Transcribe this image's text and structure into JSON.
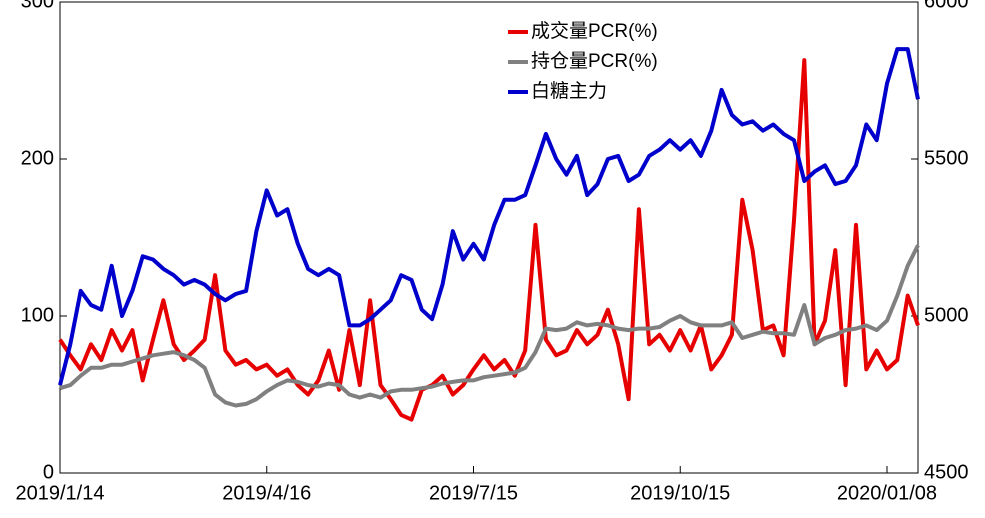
{
  "chart_data": {
    "type": "line",
    "categories": [
      "2019/1/14",
      null,
      null,
      null,
      null,
      null,
      null,
      null,
      null,
      null,
      null,
      null,
      null,
      null,
      null,
      null,
      null,
      null,
      null,
      null,
      "2019/4/16",
      null,
      null,
      null,
      null,
      null,
      null,
      null,
      null,
      null,
      null,
      null,
      null,
      null,
      null,
      null,
      null,
      null,
      null,
      null,
      "2019/7/15",
      null,
      null,
      null,
      null,
      null,
      null,
      null,
      null,
      null,
      null,
      null,
      null,
      null,
      null,
      null,
      null,
      null,
      null,
      null,
      "2019/10/15",
      null,
      null,
      null,
      null,
      null,
      null,
      null,
      null,
      null,
      null,
      null,
      null,
      null,
      null,
      null,
      null,
      null,
      null,
      null,
      "2020/01/08",
      null,
      null,
      null
    ],
    "series": [
      {
        "name": "成交量PCR(%)",
        "color": "#e60000",
        "values": [
          85,
          75,
          66,
          82,
          72,
          91,
          78,
          91,
          59,
          85,
          110,
          82,
          72,
          78,
          85,
          126,
          78,
          69,
          72,
          66,
          69,
          62,
          66,
          56,
          50,
          59,
          78,
          53,
          91,
          56,
          110,
          56,
          47,
          37,
          34,
          53,
          56,
          62,
          50,
          56,
          66,
          75,
          66,
          72,
          62,
          78,
          158,
          85,
          75,
          78,
          91,
          82,
          88,
          104,
          82,
          47,
          168,
          82,
          88,
          78,
          91,
          78,
          94,
          66,
          75,
          88,
          174,
          142,
          91,
          94,
          75,
          161,
          263,
          82,
          97,
          142,
          56,
          158,
          66,
          78,
          66,
          72,
          113,
          94
        ]
      },
      {
        "name": "持仓量PCR(%)",
        "color": "#808080",
        "values": [
          54,
          56,
          62,
          67,
          67,
          69,
          69,
          71,
          73,
          75,
          76,
          77,
          75,
          72,
          67,
          50,
          45,
          43,
          44,
          47,
          52,
          56,
          59,
          58,
          56,
          55,
          57,
          56,
          50,
          48,
          50,
          48,
          52,
          53,
          53,
          54,
          55,
          57,
          58,
          59,
          59,
          61,
          62,
          63,
          64,
          67,
          77,
          92,
          91,
          92,
          96,
          94,
          95,
          94,
          92,
          91,
          92,
          92,
          93,
          97,
          100,
          96,
          94,
          94,
          94,
          96,
          86,
          88,
          90,
          89,
          89,
          88,
          107,
          82,
          86,
          88,
          91,
          92,
          94,
          91,
          97,
          113,
          132,
          145
        ]
      },
      {
        "name": "白糖主力",
        "color": "#0000cc",
        "axis": "y2",
        "values": [
          4780,
          4910,
          5080,
          5035,
          5020,
          5160,
          5000,
          5080,
          5190,
          5180,
          5150,
          5130,
          5100,
          5115,
          5100,
          5070,
          5050,
          5070,
          5080,
          5270,
          5400,
          5320,
          5340,
          5230,
          5150,
          5130,
          5150,
          5130,
          4970,
          4970,
          4990,
          5020,
          5050,
          5130,
          5115,
          5020,
          4990,
          5100,
          5270,
          5180,
          5230,
          5180,
          5290,
          5370,
          5370,
          5385,
          5480,
          5580,
          5500,
          5450,
          5510,
          5385,
          5420,
          5500,
          5510,
          5430,
          5450,
          5510,
          5530,
          5560,
          5530,
          5560,
          5510,
          5590,
          5720,
          5640,
          5610,
          5620,
          5590,
          5610,
          5580,
          5560,
          5430,
          5460,
          5480,
          5420,
          5430,
          5480,
          5610,
          5560,
          5740,
          5850,
          5850,
          5690
        ]
      }
    ],
    "ylim": [
      0,
      300
    ],
    "yticks": [
      0,
      100,
      200,
      300
    ],
    "y2lim": [
      4500,
      6000
    ],
    "y2ticks": [
      4500,
      5000,
      5500,
      6000
    ]
  }
}
